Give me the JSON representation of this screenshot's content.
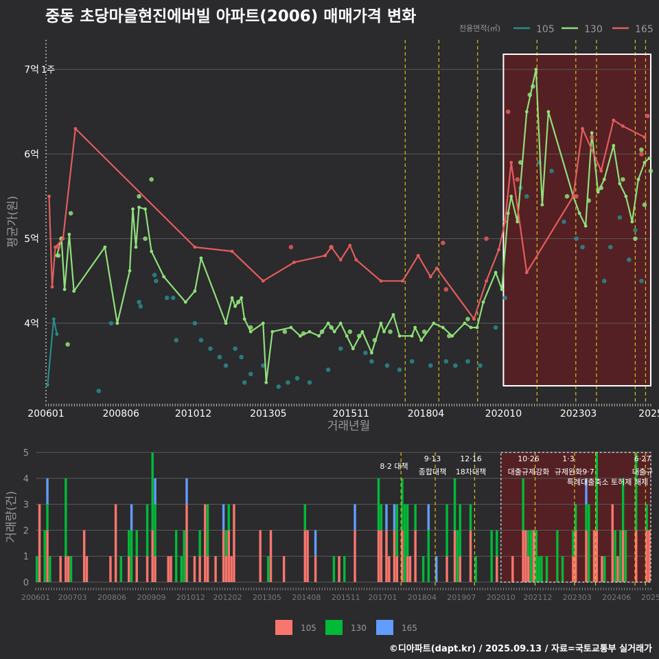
{
  "title": "중동 초당마을현진에버빌 아파트(2006) 매매가격 변화",
  "credit": "©디아파트(dapt.kr) / 2025.09.13 / 자료=국토교통부 실거래가",
  "colors": {
    "background": "#2b2a2c",
    "grid": "#5a595c",
    "highlight": "#5c1f22",
    "policy_line": "#d9c21e",
    "price_105": "#2a8a8c",
    "price_130": "#8fe07b",
    "price_165": "#e25d5d",
    "vol_105": "#f8766d",
    "vol_130": "#00ba38",
    "vol_165": "#619cff"
  },
  "chart_data": [
    {
      "type": "line",
      "name": "price",
      "ylabel": "평균가(원)",
      "xlabel": "거래년월",
      "xlim": [
        2006.0,
        2025.5
      ],
      "ylim": [
        3.05,
        7.35
      ],
      "yticks": [
        {
          "v": 4,
          "label": "4억"
        },
        {
          "v": 5,
          "label": "5억"
        },
        {
          "v": 6,
          "label": "6억"
        },
        {
          "v": 7,
          "label": "7억"
        }
      ],
      "xticks": [
        {
          "v": 2006.0,
          "label": "200601"
        },
        {
          "v": 2008.417,
          "label": "200806"
        },
        {
          "v": 2010.75,
          "label": "201012"
        },
        {
          "v": 2013.167,
          "label": "201305"
        },
        {
          "v": 2015.833,
          "label": "201511"
        },
        {
          "v": 2018.25,
          "label": "201804"
        },
        {
          "v": 2020.75,
          "label": "202010"
        },
        {
          "v": 2023.167,
          "label": "202303"
        },
        {
          "v": 2025.5,
          "label": "2025"
        }
      ],
      "legend": {
        "title": "전용면적(㎡)",
        "items": [
          "105",
          "130",
          "165"
        ],
        "position": "top-right"
      },
      "annotation_7": "7억 1주",
      "highlight_range": [
        2020.75,
        2025.5
      ],
      "policy_lines": [
        2017.583,
        2018.667,
        2019.917,
        2021.833,
        2023.083,
        2023.75,
        2025.0,
        2025.333
      ],
      "series": [
        {
          "name": "105",
          "line": [
            [
              2006.05,
              3.27
            ],
            [
              2006.25,
              4.05
            ],
            [
              2006.35,
              3.87
            ]
          ],
          "points": [
            [
              2007.7,
              3.2
            ],
            [
              2008.1,
              4.0
            ],
            [
              2009.0,
              4.25
            ],
            [
              2009.05,
              4.2
            ],
            [
              2009.5,
              4.57
            ],
            [
              2009.55,
              4.5
            ],
            [
              2009.9,
              4.3
            ],
            [
              2010.1,
              4.3
            ],
            [
              2010.2,
              3.8
            ],
            [
              2010.8,
              4.0
            ],
            [
              2011.0,
              3.8
            ],
            [
              2011.3,
              3.7
            ],
            [
              2011.6,
              3.6
            ],
            [
              2011.8,
              3.5
            ],
            [
              2012.1,
              3.7
            ],
            [
              2012.3,
              3.6
            ],
            [
              2012.4,
              3.3
            ],
            [
              2012.6,
              3.4
            ],
            [
              2013.0,
              3.5
            ],
            [
              2013.5,
              3.25
            ],
            [
              2013.8,
              3.3
            ],
            [
              2014.1,
              3.35
            ],
            [
              2014.5,
              3.3
            ],
            [
              2015.1,
              3.45
            ],
            [
              2015.5,
              3.7
            ],
            [
              2016.3,
              3.65
            ],
            [
              2016.5,
              3.55
            ],
            [
              2017.0,
              3.5
            ],
            [
              2017.4,
              3.45
            ],
            [
              2017.8,
              3.55
            ],
            [
              2018.4,
              3.5
            ],
            [
              2018.9,
              3.55
            ],
            [
              2019.2,
              3.5
            ],
            [
              2019.6,
              3.55
            ],
            [
              2020.0,
              3.5
            ],
            [
              2020.5,
              3.95
            ],
            [
              2020.8,
              4.3
            ],
            [
              2021.3,
              5.6
            ],
            [
              2021.5,
              5.5
            ],
            [
              2021.9,
              5.9
            ],
            [
              2022.3,
              5.8
            ],
            [
              2022.7,
              5.2
            ],
            [
              2023.1,
              5.0
            ],
            [
              2023.3,
              4.9
            ],
            [
              2024.0,
              4.5
            ],
            [
              2024.2,
              4.9
            ],
            [
              2024.5,
              5.25
            ],
            [
              2024.8,
              4.75
            ],
            [
              2025.0,
              5.1
            ],
            [
              2025.2,
              4.5
            ]
          ]
        },
        {
          "name": "130",
          "line": [
            [
              2006.35,
              4.8
            ],
            [
              2006.5,
              5.0
            ],
            [
              2006.6,
              4.4
            ],
            [
              2006.75,
              5.05
            ],
            [
              2006.9,
              4.38
            ],
            [
              2007.9,
              4.9
            ],
            [
              2008.3,
              4.0
            ],
            [
              2008.7,
              4.62
            ],
            [
              2008.8,
              5.35
            ],
            [
              2008.9,
              4.9
            ],
            [
              2009.0,
              5.37
            ],
            [
              2009.2,
              5.35
            ],
            [
              2009.4,
              4.85
            ],
            [
              2009.8,
              4.55
            ],
            [
              2010.5,
              4.25
            ],
            [
              2010.8,
              4.38
            ],
            [
              2011.0,
              4.77
            ],
            [
              2011.8,
              4.0
            ],
            [
              2012.0,
              4.3
            ],
            [
              2012.1,
              4.2
            ],
            [
              2012.3,
              4.3
            ],
            [
              2012.4,
              4.05
            ],
            [
              2012.6,
              3.9
            ],
            [
              2013.0,
              4.0
            ],
            [
              2013.1,
              3.3
            ],
            [
              2013.3,
              3.9
            ],
            [
              2013.9,
              3.95
            ],
            [
              2014.2,
              3.85
            ],
            [
              2014.5,
              3.9
            ],
            [
              2014.8,
              3.85
            ],
            [
              2015.1,
              4.0
            ],
            [
              2015.3,
              3.9
            ],
            [
              2015.5,
              4.0
            ],
            [
              2015.7,
              3.85
            ],
            [
              2015.9,
              3.7
            ],
            [
              2016.2,
              3.9
            ],
            [
              2016.5,
              3.65
            ],
            [
              2016.8,
              4.0
            ],
            [
              2016.9,
              3.9
            ],
            [
              2017.2,
              4.1
            ],
            [
              2017.4,
              3.85
            ],
            [
              2017.8,
              3.85
            ],
            [
              2017.9,
              3.95
            ],
            [
              2018.1,
              3.8
            ],
            [
              2018.5,
              4.0
            ],
            [
              2018.8,
              3.95
            ],
            [
              2019.1,
              3.85
            ],
            [
              2019.5,
              4.0
            ],
            [
              2019.7,
              3.95
            ],
            [
              2019.9,
              3.95
            ],
            [
              2020.1,
              4.25
            ],
            [
              2020.5,
              4.6
            ],
            [
              2020.7,
              4.4
            ],
            [
              2020.9,
              5.3
            ],
            [
              2021.0,
              5.5
            ],
            [
              2021.2,
              5.2
            ],
            [
              2021.5,
              6.5
            ],
            [
              2021.8,
              7.0
            ],
            [
              2022.0,
              5.4
            ],
            [
              2022.2,
              6.5
            ],
            [
              2023.0,
              5.5
            ],
            [
              2023.2,
              5.3
            ],
            [
              2023.4,
              5.15
            ],
            [
              2023.6,
              6.25
            ],
            [
              2023.8,
              5.55
            ],
            [
              2024.0,
              5.7
            ],
            [
              2024.3,
              6.1
            ],
            [
              2024.5,
              5.65
            ],
            [
              2024.7,
              5.5
            ],
            [
              2024.9,
              5.2
            ],
            [
              2025.1,
              5.7
            ],
            [
              2025.3,
              5.9
            ],
            [
              2025.45,
              5.95
            ]
          ],
          "points": [
            [
              2006.4,
              4.8
            ],
            [
              2006.5,
              5.0
            ],
            [
              2006.8,
              5.3
            ],
            [
              2006.7,
              3.75
            ],
            [
              2009.0,
              5.5
            ],
            [
              2009.2,
              5.0
            ],
            [
              2009.4,
              5.7
            ],
            [
              2012.2,
              4.25
            ],
            [
              2012.6,
              3.95
            ],
            [
              2013.7,
              3.9
            ],
            [
              2014.3,
              3.88
            ],
            [
              2014.9,
              3.9
            ],
            [
              2015.2,
              3.95
            ],
            [
              2015.8,
              3.9
            ],
            [
              2016.1,
              3.85
            ],
            [
              2016.6,
              3.8
            ],
            [
              2017.1,
              3.9
            ],
            [
              2018.2,
              3.9
            ],
            [
              2019.0,
              3.85
            ],
            [
              2019.6,
              4.05
            ],
            [
              2021.3,
              5.9
            ],
            [
              2021.6,
              6.7
            ],
            [
              2021.7,
              6.8
            ],
            [
              2022.8,
              5.5
            ],
            [
              2023.5,
              5.45
            ],
            [
              2023.9,
              5.6
            ],
            [
              2024.6,
              5.7
            ],
            [
              2025.2,
              6.05
            ],
            [
              2025.3,
              5.4
            ],
            [
              2025.0,
              5.0
            ],
            [
              2025.5,
              5.8
            ]
          ]
        },
        {
          "name": "165",
          "line": [
            [
              2006.1,
              5.5
            ],
            [
              2006.2,
              4.43
            ],
            [
              2006.3,
              4.9
            ],
            [
              2006.55,
              5.0
            ],
            [
              2006.95,
              6.3
            ],
            [
              2010.8,
              4.9
            ],
            [
              2012.0,
              4.85
            ],
            [
              2013.0,
              4.5
            ],
            [
              2014.0,
              4.72
            ],
            [
              2015.0,
              4.8
            ],
            [
              2015.2,
              4.9
            ],
            [
              2015.5,
              4.75
            ],
            [
              2015.8,
              4.92
            ],
            [
              2016.0,
              4.75
            ],
            [
              2016.8,
              4.5
            ],
            [
              2017.5,
              4.5
            ],
            [
              2018.0,
              4.8
            ],
            [
              2018.4,
              4.55
            ],
            [
              2018.6,
              4.65
            ],
            [
              2019.8,
              4.05
            ],
            [
              2020.2,
              4.5
            ],
            [
              2020.6,
              4.87
            ],
            [
              2020.8,
              5.2
            ],
            [
              2021.0,
              5.9
            ],
            [
              2021.5,
              4.6
            ],
            [
              2023.0,
              5.5
            ],
            [
              2023.3,
              6.3
            ],
            [
              2023.9,
              5.8
            ],
            [
              2024.3,
              6.4
            ],
            [
              2024.6,
              6.33
            ],
            [
              2025.3,
              6.2
            ]
          ],
          "points": [
            [
              2006.4,
              4.9
            ],
            [
              2013.9,
              4.9
            ],
            [
              2015.2,
              4.9
            ],
            [
              2018.8,
              4.95
            ],
            [
              2018.9,
              4.4
            ],
            [
              2020.2,
              5.0
            ],
            [
              2020.9,
              6.5
            ],
            [
              2021.2,
              5.7
            ],
            [
              2023.1,
              5.5
            ],
            [
              2023.6,
              6.2
            ],
            [
              2025.2,
              6.0
            ],
            [
              2025.4,
              6.45
            ]
          ]
        }
      ]
    },
    {
      "type": "bar",
      "name": "volume",
      "ylabel": "거래량(건)",
      "ylim": [
        0,
        5
      ],
      "yticks": [
        0,
        1,
        2,
        3,
        4,
        5
      ],
      "xticks": [
        "200601",
        "200703",
        "200806",
        "200909",
        "201012",
        "201202",
        "201305",
        "201408",
        "201511",
        "201701",
        "201804",
        "201907",
        "202010",
        "202112",
        "202303",
        "202406",
        "2025"
      ],
      "legend": [
        "105",
        "130",
        "165"
      ],
      "annotations": [
        {
          "date": "8·2",
          "text": "8·2 대책"
        },
        {
          "date": "9·13",
          "text": "종합대책"
        },
        {
          "date": "12·16",
          "text": "18차대책"
        },
        {
          "date": "10·26",
          "text": "대출규제강화"
        },
        {
          "date": "1·3",
          "text": "규제완화"
        },
        {
          "date": "9·7",
          "text": "특례대출축소 토허제 해제"
        },
        {
          "date": "6·27",
          "text": "대출규"
        }
      ]
    }
  ]
}
